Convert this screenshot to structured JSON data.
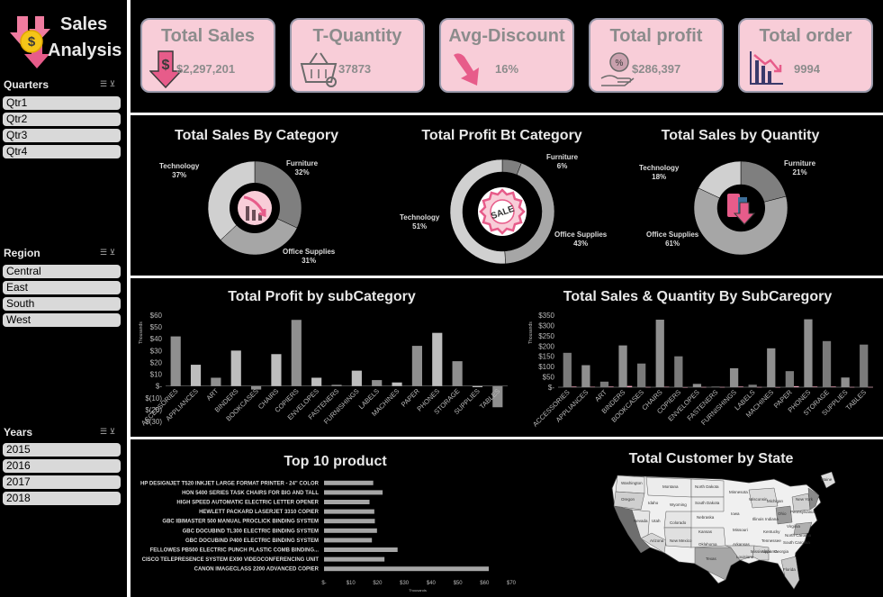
{
  "header": {
    "title_line1": "Sales",
    "title_line2": "Analysis"
  },
  "slicers": {
    "quarters": {
      "title": "Quarters",
      "items": [
        "Qtr1",
        "Qtr2",
        "Qtr3",
        "Qtr4"
      ]
    },
    "region": {
      "title": "Region",
      "items": [
        "Central",
        "East",
        "South",
        "West"
      ]
    },
    "years": {
      "title": "Years",
      "items": [
        "2015",
        "2016",
        "2017",
        "2018"
      ]
    }
  },
  "kpis": [
    {
      "title": "Total Sales",
      "value": "$2,297,201",
      "icon": "dollar-down-icon"
    },
    {
      "title": "T-Quantity",
      "value": "37873",
      "icon": "basket-icon"
    },
    {
      "title": "Avg-Discount",
      "value": "16%",
      "icon": "arrow-down-icon"
    },
    {
      "title": "Total profit",
      "value": "$286,397",
      "icon": "profit-hand-icon"
    },
    {
      "title": "Total order",
      "value": "9994",
      "icon": "chart-down-icon"
    }
  ],
  "chart_data": [
    {
      "type": "pie",
      "title": "Total Sales By Category",
      "labels": [
        "Furniture",
        "Office Supplies",
        "Technology"
      ],
      "values": [
        32,
        31,
        37
      ],
      "colors": [
        "#7f7f7f",
        "#a6a6a6",
        "#d0d0d0"
      ]
    },
    {
      "type": "pie",
      "title": "Total Profit Bt Category",
      "labels": [
        "Furniture",
        "Office Supplies",
        "Technology"
      ],
      "values": [
        6,
        43,
        51
      ],
      "colors": [
        "#7f7f7f",
        "#a6a6a6",
        "#d0d0d0"
      ]
    },
    {
      "type": "pie",
      "title": "Total Sales by Quantity",
      "labels": [
        "Furniture",
        "Office Supplies",
        "Technology"
      ],
      "values": [
        21,
        61,
        18
      ],
      "colors": [
        "#7f7f7f",
        "#a6a6a6",
        "#d0d0d0"
      ]
    },
    {
      "type": "bar",
      "title": "Total Profit by subCategory",
      "ylabel": "Thousands",
      "categories": [
        "ACCESSORIES",
        "APPLIANCES",
        "ART",
        "BINDERS",
        "BOOKCASES",
        "CHAIRS",
        "COPIERS",
        "ENVELOPES",
        "FASTENERS",
        "FURNISHINGS",
        "LABELS",
        "MACHINES",
        "PAPER",
        "PHONES",
        "STORAGE",
        "SUPPLIES",
        "TABLES"
      ],
      "values": [
        42,
        18,
        7,
        30,
        -3,
        27,
        56,
        7,
        1,
        13,
        5,
        3,
        34,
        45,
        21,
        -1,
        -18
      ],
      "yticks": [
        "$60",
        "$50",
        "$40",
        "$30",
        "$20",
        "$10",
        "$-",
        "$(10)",
        "$(20)",
        "$(30)"
      ],
      "ylim": [
        -30,
        60
      ]
    },
    {
      "type": "bar",
      "title": "Total Sales & Quantity By SubCaregory",
      "ylabel": "Thousands",
      "categories": [
        "ACCESSORIES",
        "APPLIANCES",
        "ART",
        "BINDERS",
        "BOOKCASES",
        "CHAIRS",
        "COPIERS",
        "ENVELOPES",
        "FASTENERS",
        "FURNISHINGS",
        "LABELS",
        "MACHINES",
        "PAPER",
        "PHONES",
        "STORAGE",
        "SUPPLIES",
        "TABLES"
      ],
      "series": [
        {
          "values": [
            167,
            107,
            27,
            203,
            115,
            328,
            150,
            16,
            3,
            92,
            12,
            189,
            78,
            330,
            224,
            47,
            207
          ]
        },
        {
          "values": [
            3,
            2,
            3,
            6,
            1,
            2,
            0.2,
            1,
            1,
            3,
            1,
            0.4,
            5,
            3,
            3,
            1,
            1
          ]
        }
      ],
      "yticks": [
        "$350",
        "$300",
        "$250",
        "$200",
        "$150",
        "$100",
        "$50",
        "$-"
      ],
      "ylim": [
        0,
        350
      ]
    },
    {
      "type": "bar",
      "orientation": "horizontal",
      "title": "Top 10 product",
      "categories": [
        "HP DESIGNJET T520 INKJET LARGE FORMAT PRINTER - 24\" COLOR",
        "HON 5400 SERIES TASK CHAIRS FOR BIG AND TALL",
        "HIGH SPEED AUTOMATIC ELECTRIC LETTER OPENER",
        "HEWLETT PACKARD LASERJET 3310 COPIER",
        "GBC IBIMASTER 500 MANUAL PROCLICK BINDING SYSTEM",
        "GBC DOCUBIND TL300 ELECTRIC BINDING SYSTEM",
        "GBC DOCUBIND P400 ELECTRIC BINDING SYSTEM",
        "FELLOWES PB500 ELECTRIC PUNCH PLASTIC COMB BINDING...",
        "CISCO TELEPRESENCE SYSTEM EX90 VIDEOCONFERENCING UNIT",
        "CANON IMAGECLASS 2200 ADVANCED COPIER"
      ],
      "values": [
        18.4,
        21.9,
        17.0,
        18.8,
        19.0,
        19.8,
        17.9,
        27.5,
        22.6,
        61.6
      ],
      "xticks": [
        "$-",
        "$10",
        "$20",
        "$30",
        "$40",
        "$50",
        "$60",
        "$70"
      ],
      "xlabel": "Thousands",
      "xlim": [
        0,
        70
      ]
    }
  ],
  "map": {
    "title": "Total Customer by State",
    "labels": [
      "Washington",
      "Oregon",
      "Idaho",
      "Montana",
      "Wyoming",
      "Nevada",
      "Utah",
      "Colorado",
      "Arizona",
      "New Mexico",
      "North Dakota",
      "South Dakota",
      "Nebraska",
      "Kansas",
      "Oklahoma",
      "Texas",
      "Minnesota",
      "Iowa",
      "Missouri",
      "Arkansas",
      "Louisiana",
      "Wisconsin",
      "Illinois",
      "Michigan",
      "Indiana",
      "Ohio",
      "Kentucky",
      "Tennessee",
      "Mississippi",
      "Alabama",
      "Georgia",
      "Florida",
      "South Carolina",
      "North Carolina",
      "Virginia",
      "Pennsylvania",
      "New York",
      "Maine"
    ]
  },
  "center_icons": {
    "pie1": "chart-down-icon",
    "pie2": "sale-badge-icon",
    "pie3": "arrow-down-icon"
  }
}
